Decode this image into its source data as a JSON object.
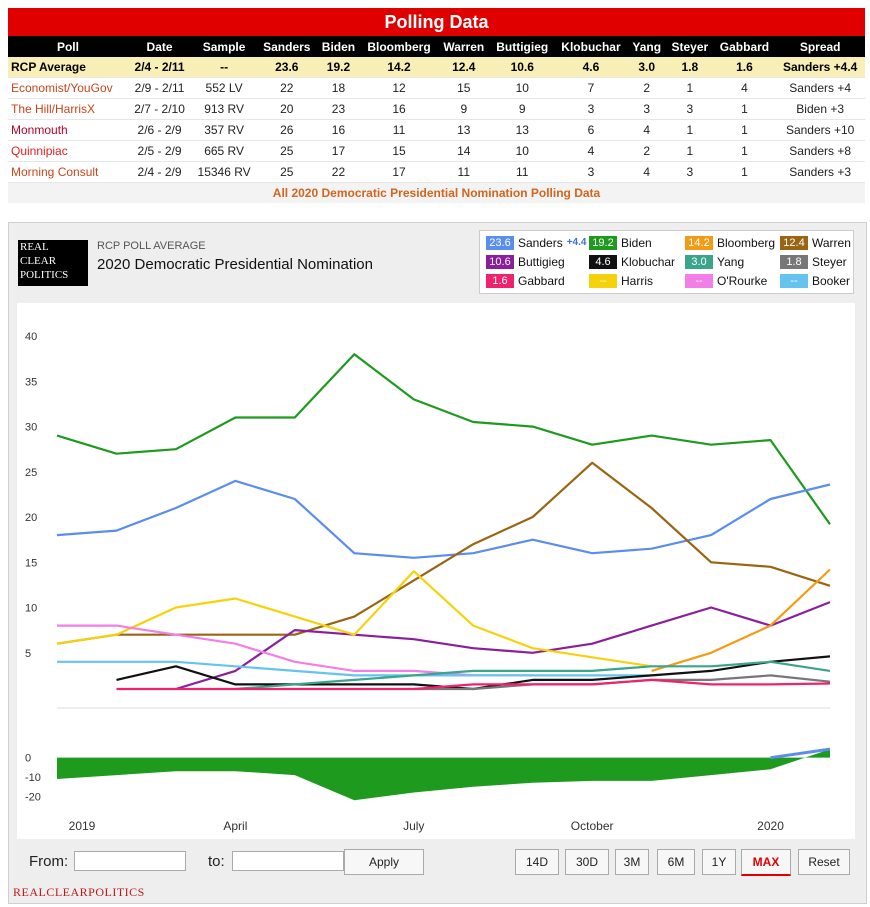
{
  "header": {
    "title": "Polling Data"
  },
  "table": {
    "columns": [
      "Poll",
      "Date",
      "Sample",
      "Sanders",
      "Biden",
      "Bloomberg",
      "Warren",
      "Buttigieg",
      "Klobuchar",
      "Yang",
      "Steyer",
      "Gabbard",
      "Spread"
    ],
    "rows": [
      [
        "RCP Average",
        "2/4 - 2/11",
        "--",
        "23.6",
        "19.2",
        "14.2",
        "12.4",
        "10.6",
        "4.6",
        "3.0",
        "1.8",
        "1.6",
        "Sanders +4.4"
      ],
      [
        "Economist/YouGov",
        "2/9 - 2/11",
        "552 LV",
        "22",
        "18",
        "12",
        "15",
        "10",
        "7",
        "2",
        "1",
        "4",
        "Sanders +4"
      ],
      [
        "The Hill/HarrisX",
        "2/7 - 2/10",
        "913 RV",
        "20",
        "23",
        "16",
        "9",
        "9",
        "3",
        "3",
        "3",
        "1",
        "Biden +3"
      ],
      [
        "Monmouth",
        "2/6 - 2/9",
        "357 RV",
        "26",
        "16",
        "11",
        "13",
        "13",
        "6",
        "4",
        "1",
        "1",
        "Sanders +10"
      ],
      [
        "Quinnipiac",
        "2/5 - 2/9",
        "665 RV",
        "25",
        "17",
        "15",
        "14",
        "10",
        "4",
        "2",
        "1",
        "1",
        "Sanders +8"
      ],
      [
        "Morning Consult",
        "2/4 - 2/9",
        "15346 RV",
        "25",
        "22",
        "17",
        "11",
        "11",
        "3",
        "4",
        "3",
        "1",
        "Sanders +3"
      ]
    ],
    "all_link": "All 2020 Democratic Presidential Nomination Polling Data"
  },
  "chart_header": {
    "small": "RCP POLL AVERAGE",
    "title": "2020 Democratic Presidential Nomination",
    "logo_lines": [
      "REAL",
      "CLEAR",
      "POLITICS"
    ]
  },
  "legend": [
    {
      "name": "Sanders",
      "value": "23.6",
      "color": "#5b8def",
      "spread": "+4.4"
    },
    {
      "name": "Biden",
      "value": "19.2",
      "color": "#1e9a1e"
    },
    {
      "name": "Bloomberg",
      "value": "14.2",
      "color": "#f59a15"
    },
    {
      "name": "Warren",
      "value": "12.4",
      "color": "#9a6512"
    },
    {
      "name": "Buttigieg",
      "value": "10.6",
      "color": "#8b1f9b"
    },
    {
      "name": "Klobuchar",
      "value": "4.6",
      "color": "#111111"
    },
    {
      "name": "Yang",
      "value": "3.0",
      "color": "#3aa58a"
    },
    {
      "name": "Steyer",
      "value": "1.8",
      "color": "#777777"
    },
    {
      "name": "Gabbard",
      "value": "1.6",
      "color": "#f0226e"
    },
    {
      "name": "Harris",
      "value": "--",
      "color": "#f5d20c"
    },
    {
      "name": "O'Rourke",
      "value": "--",
      "color": "#f27ee8"
    },
    {
      "name": "Booker",
      "value": "--",
      "color": "#66c3f0"
    }
  ],
  "chart_data": {
    "type": "line",
    "x_ticks": [
      "2019",
      "April",
      "July",
      "October",
      "2020"
    ],
    "y_ticks": [
      "40",
      "35",
      "30",
      "25",
      "20",
      "15",
      "10",
      "5"
    ],
    "ylim": [
      0,
      42
    ],
    "spread_ticks": [
      "0",
      "-10",
      "-20"
    ],
    "spread_ylim": [
      -26,
      5
    ],
    "x_dates": [
      "2019-01",
      "2019-02",
      "2019-03",
      "2019-04",
      "2019-05",
      "2019-06",
      "2019-07",
      "2019-08",
      "2019-09",
      "2019-10",
      "2019-11",
      "2019-12",
      "2020-01",
      "2020-02-11"
    ],
    "series": [
      {
        "name": "Biden",
        "values": [
          29,
          27,
          27.5,
          31,
          31,
          38,
          33,
          30.5,
          30,
          28,
          29,
          28,
          28.5,
          19.2
        ]
      },
      {
        "name": "Sanders",
        "values": [
          18,
          18.5,
          21,
          24,
          22,
          16,
          15.5,
          16,
          17.5,
          16,
          16.5,
          18,
          22,
          23.6
        ]
      },
      {
        "name": "Warren",
        "values": [
          6,
          7,
          7,
          7,
          7,
          9,
          13,
          17,
          20,
          26,
          21,
          15,
          14.5,
          12.4
        ]
      },
      {
        "name": "Buttigieg",
        "values": [
          null,
          null,
          1,
          3,
          7.5,
          7,
          6.5,
          5.5,
          5,
          6,
          8,
          10,
          8,
          10.6
        ]
      },
      {
        "name": "Bloomberg",
        "values": [
          null,
          null,
          null,
          null,
          null,
          null,
          null,
          null,
          null,
          null,
          3,
          5,
          8,
          14.2
        ]
      },
      {
        "name": "Harris",
        "values": [
          6,
          7,
          10,
          11,
          9,
          7,
          14,
          8,
          5.5,
          4.5,
          3.5,
          null,
          null,
          null
        ]
      },
      {
        "name": "O'Rourke",
        "values": [
          8,
          8,
          7,
          6,
          4,
          3,
          3,
          2.5,
          2.5,
          null,
          null,
          null,
          null,
          null
        ]
      },
      {
        "name": "Booker",
        "values": [
          4,
          4,
          4,
          3.5,
          3,
          2.5,
          2.5,
          2.5,
          2.5,
          2.5,
          2.5,
          null,
          null,
          null
        ]
      },
      {
        "name": "Klobuchar",
        "values": [
          null,
          2,
          3.5,
          1.5,
          1.5,
          1.5,
          1.5,
          1,
          2,
          2,
          2.5,
          3,
          4,
          4.6
        ]
      },
      {
        "name": "Yang",
        "values": [
          null,
          null,
          null,
          1,
          1.5,
          2,
          2.5,
          3,
          3,
          3,
          3.5,
          3.5,
          4,
          3.0
        ]
      },
      {
        "name": "Steyer",
        "values": [
          null,
          null,
          null,
          null,
          null,
          null,
          1,
          1,
          1.5,
          1.5,
          2,
          2,
          2.5,
          1.8
        ]
      },
      {
        "name": "Gabbard",
        "values": [
          null,
          1,
          1,
          1,
          1,
          1,
          1,
          1.5,
          1.5,
          1.5,
          2,
          1.5,
          1.5,
          1.6
        ]
      }
    ],
    "spread": {
      "name": "Spread",
      "values": [
        -11,
        -9,
        -7,
        -7,
        -9,
        -22,
        -18,
        -15,
        -13,
        -12,
        -12,
        -9,
        -6,
        4.4
      ]
    }
  },
  "controls": {
    "from_label": "From:",
    "to_label": "to:",
    "apply": "Apply",
    "ranges": [
      "14D",
      "30D",
      "3M",
      "6M",
      "1Y",
      "MAX"
    ],
    "active_range": "MAX",
    "reset": "Reset"
  },
  "footer": {
    "brand": "REALCLEARPOLITICS"
  }
}
